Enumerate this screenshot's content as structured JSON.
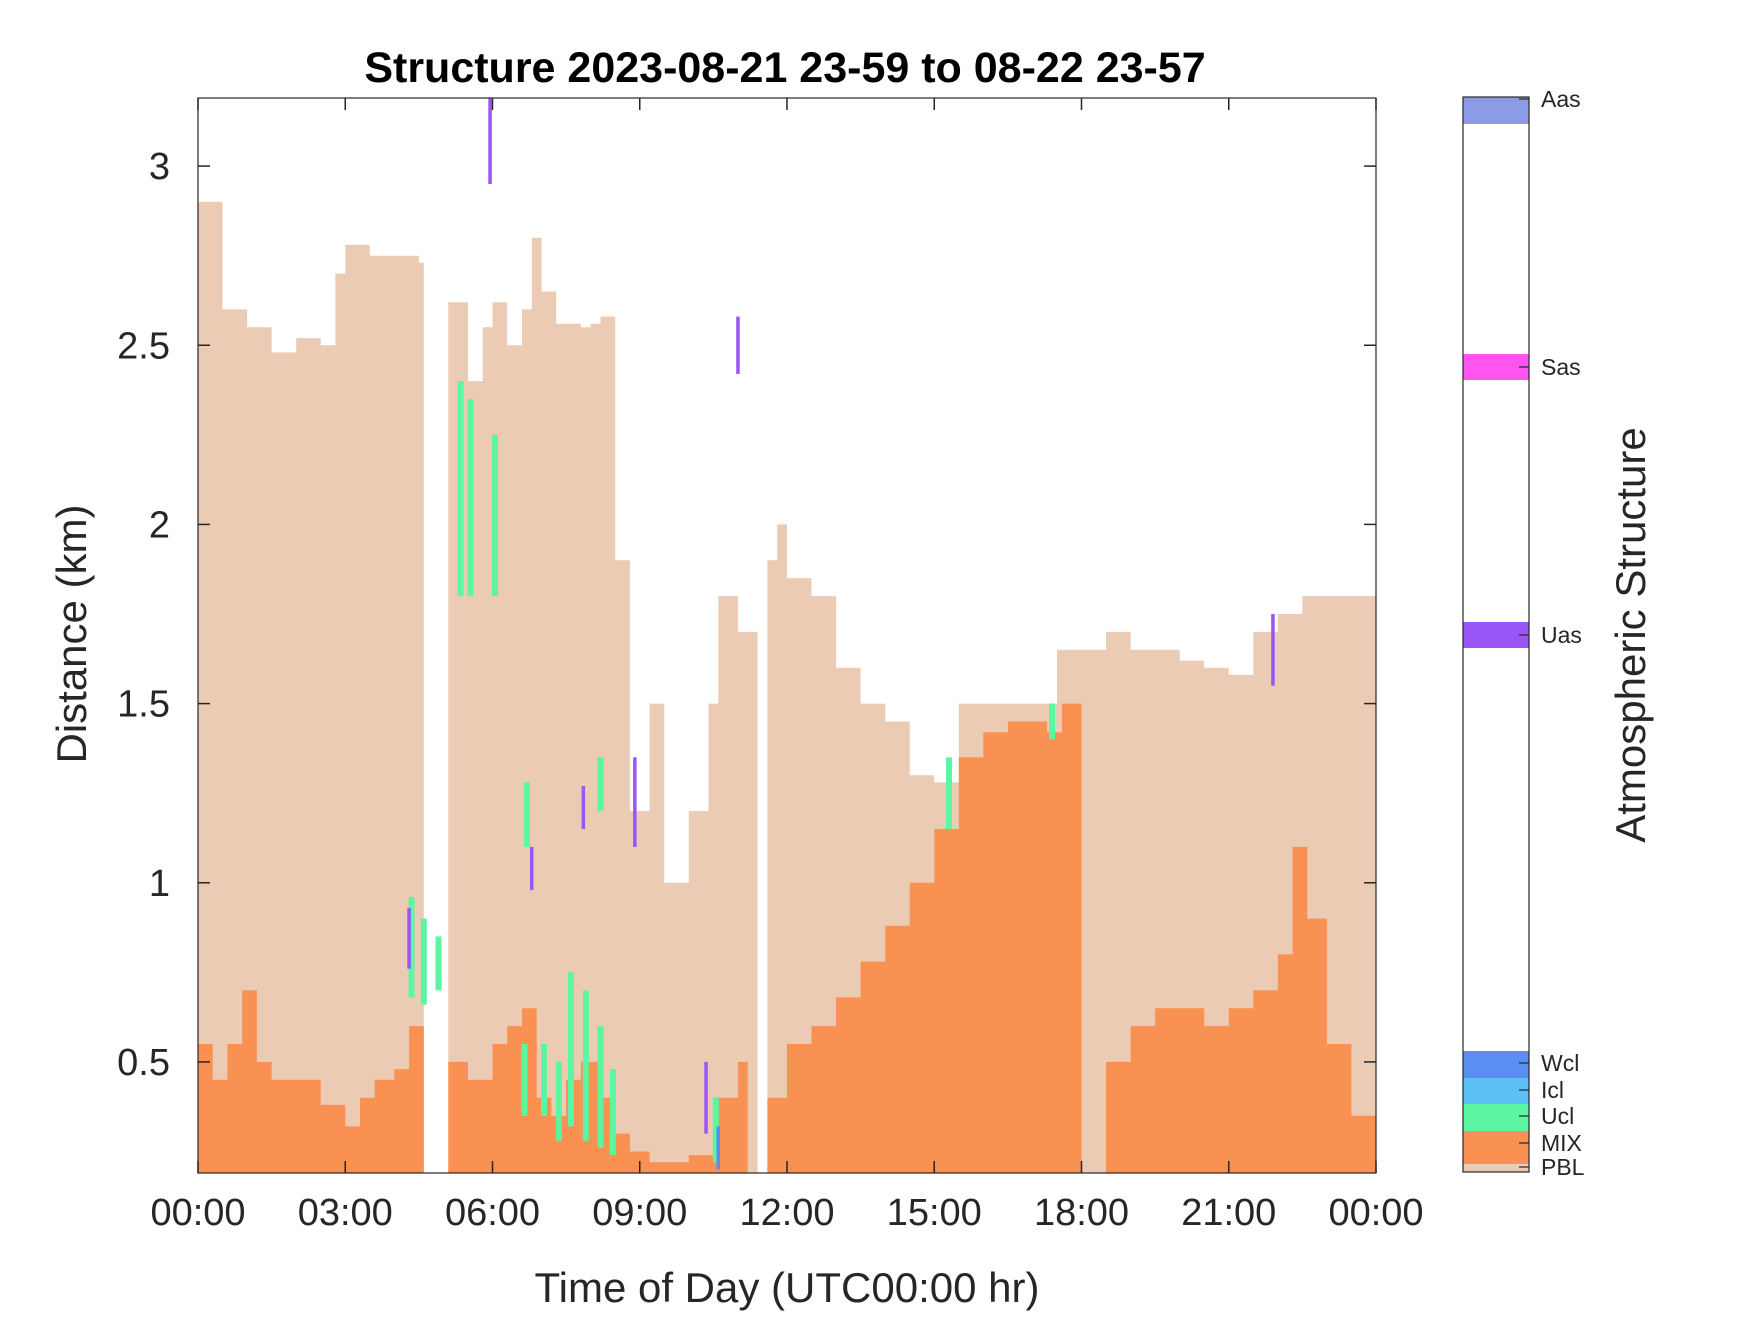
{
  "chart_data": {
    "type": "area",
    "title": "Structure 2023-08-21 23-59 to 08-22 23-57",
    "xlabel": "Time of Day (UTC00:00 hr)",
    "ylabel": "Distance (km)",
    "x_unit": "hours",
    "xlim": [
      0,
      24
    ],
    "ylim": [
      0.19,
      3.19
    ],
    "x_ticks": [
      0,
      3,
      6,
      9,
      12,
      15,
      18,
      21,
      24
    ],
    "x_tick_labels": [
      "00:00",
      "03:00",
      "06:00",
      "09:00",
      "12:00",
      "15:00",
      "18:00",
      "21:00",
      "00:00"
    ],
    "y_ticks": [
      0.5,
      1,
      1.5,
      2,
      2.5,
      3
    ],
    "y_tick_labels": [
      "0.5",
      "1",
      "1.5",
      "2",
      "2.5",
      "3"
    ],
    "colorbar": {
      "title": "Atmospheric Structure",
      "classes": [
        {
          "label": "Aas",
          "color": "#8c9be6"
        },
        {
          "label": "Sas",
          "color": "#ff55ee"
        },
        {
          "label": "Uas",
          "color": "#9955f5"
        },
        {
          "label": "Wcl",
          "color": "#5c8ef2"
        },
        {
          "label": "Icl",
          "color": "#5cc2f5"
        },
        {
          "label": "Ucl",
          "color": "#5cf5a2"
        },
        {
          "label": "MIX",
          "color": "#f99152"
        },
        {
          "label": "PBL",
          "color": "#eccbb5"
        }
      ]
    },
    "series": [
      {
        "name": "PBL",
        "color": "#eccbb5",
        "points": [
          [
            0,
            2.9
          ],
          [
            0.5,
            2.6
          ],
          [
            1,
            2.55
          ],
          [
            1.5,
            2.48
          ],
          [
            2,
            2.52
          ],
          [
            2.5,
            2.5
          ],
          [
            2.8,
            2.7
          ],
          [
            3,
            2.78
          ],
          [
            3.5,
            2.75
          ],
          [
            4,
            2.75
          ],
          [
            4.5,
            2.73
          ],
          [
            4.6,
            0.19
          ],
          [
            5.0,
            0.19
          ],
          [
            5.1,
            2.62
          ],
          [
            5.5,
            2.4
          ],
          [
            5.8,
            2.55
          ],
          [
            6,
            2.62
          ],
          [
            6.3,
            2.5
          ],
          [
            6.6,
            2.6
          ],
          [
            6.8,
            2.8
          ],
          [
            7,
            2.65
          ],
          [
            7.3,
            2.56
          ],
          [
            7.8,
            2.55
          ],
          [
            8.0,
            2.56
          ],
          [
            8.2,
            2.58
          ],
          [
            8.5,
            1.9
          ],
          [
            8.8,
            1.2
          ],
          [
            9.2,
            1.5
          ],
          [
            9.5,
            1.0
          ],
          [
            10,
            1.2
          ],
          [
            10.4,
            1.5
          ],
          [
            10.6,
            1.8
          ],
          [
            11,
            1.7
          ],
          [
            11.4,
            0.19
          ],
          [
            11.6,
            1.9
          ],
          [
            11.8,
            2.0
          ],
          [
            12,
            1.85
          ],
          [
            12.5,
            1.8
          ],
          [
            13,
            1.6
          ],
          [
            13.5,
            1.5
          ],
          [
            14,
            1.45
          ],
          [
            14.5,
            1.3
          ],
          [
            15,
            1.28
          ],
          [
            15.5,
            1.5
          ],
          [
            16,
            1.5
          ],
          [
            17,
            1.5
          ],
          [
            17.5,
            1.65
          ],
          [
            18,
            1.65
          ],
          [
            18.5,
            1.7
          ],
          [
            19,
            1.65
          ],
          [
            19.5,
            1.65
          ],
          [
            20,
            1.62
          ],
          [
            20.5,
            1.6
          ],
          [
            21,
            1.58
          ],
          [
            21.5,
            1.7
          ],
          [
            22,
            1.75
          ],
          [
            22.5,
            1.8
          ],
          [
            23,
            1.8
          ],
          [
            23.5,
            1.8
          ],
          [
            24,
            1.82
          ]
        ]
      },
      {
        "name": "MIX",
        "color": "#f99152",
        "points": [
          [
            0,
            0.55
          ],
          [
            0.3,
            0.45
          ],
          [
            0.6,
            0.55
          ],
          [
            0.9,
            0.7
          ],
          [
            1.2,
            0.5
          ],
          [
            1.5,
            0.45
          ],
          [
            2,
            0.45
          ],
          [
            2.5,
            0.38
          ],
          [
            3,
            0.32
          ],
          [
            3.3,
            0.4
          ],
          [
            3.6,
            0.45
          ],
          [
            4,
            0.48
          ],
          [
            4.3,
            0.6
          ],
          [
            4.6,
            0.19
          ],
          [
            5.0,
            0.19
          ],
          [
            5.1,
            0.5
          ],
          [
            5.5,
            0.45
          ],
          [
            6,
            0.55
          ],
          [
            6.3,
            0.6
          ],
          [
            6.6,
            0.65
          ],
          [
            6.9,
            0.4
          ],
          [
            7.2,
            0.35
          ],
          [
            7.5,
            0.45
          ],
          [
            7.8,
            0.5
          ],
          [
            8.2,
            0.4
          ],
          [
            8.5,
            0.3
          ],
          [
            8.8,
            0.25
          ],
          [
            9.2,
            0.22
          ],
          [
            9.6,
            0.22
          ],
          [
            10,
            0.24
          ],
          [
            10.5,
            0.4
          ],
          [
            11,
            0.5
          ],
          [
            11.2,
            0.19
          ],
          [
            11.4,
            0.19
          ],
          [
            11.6,
            0.4
          ],
          [
            12,
            0.55
          ],
          [
            12.5,
            0.6
          ],
          [
            13,
            0.68
          ],
          [
            13.5,
            0.78
          ],
          [
            14,
            0.88
          ],
          [
            14.5,
            1.0
          ],
          [
            15,
            1.15
          ],
          [
            15.5,
            1.35
          ],
          [
            16,
            1.42
          ],
          [
            16.5,
            1.45
          ],
          [
            17,
            1.45
          ],
          [
            17.3,
            1.42
          ],
          [
            17.6,
            1.5
          ],
          [
            17.9,
            1.5
          ],
          [
            18.0,
            0.19
          ],
          [
            18.5,
            0.5
          ],
          [
            19,
            0.6
          ],
          [
            19.5,
            0.65
          ],
          [
            20,
            0.65
          ],
          [
            20.5,
            0.6
          ],
          [
            21,
            0.65
          ],
          [
            21.5,
            0.7
          ],
          [
            22,
            0.8
          ],
          [
            22.3,
            1.1
          ],
          [
            22.6,
            0.9
          ],
          [
            23,
            0.55
          ],
          [
            23.5,
            0.35
          ],
          [
            24,
            0.3
          ]
        ]
      },
      {
        "name": "Ucl",
        "color": "#5cf5a2",
        "segments": [
          [
            5.35,
            1.8,
            2.4
          ],
          [
            5.55,
            1.8,
            2.35
          ],
          [
            6.05,
            1.8,
            2.25
          ],
          [
            4.35,
            0.68,
            0.96
          ],
          [
            4.6,
            0.66,
            0.9
          ],
          [
            4.9,
            0.7,
            0.85
          ],
          [
            6.65,
            0.35,
            0.55
          ],
          [
            7.05,
            0.35,
            0.55
          ],
          [
            7.35,
            0.28,
            0.5
          ],
          [
            7.6,
            0.32,
            0.75
          ],
          [
            7.9,
            0.28,
            0.7
          ],
          [
            8.2,
            0.26,
            0.6
          ],
          [
            8.45,
            0.24,
            0.48
          ],
          [
            6.7,
            1.1,
            1.28
          ],
          [
            8.2,
            1.2,
            1.35
          ],
          [
            10.55,
            0.22,
            0.4
          ],
          [
            15.3,
            1.15,
            1.35
          ],
          [
            17.4,
            1.4,
            1.5
          ]
        ]
      },
      {
        "name": "Uas",
        "color": "#9955f5",
        "segments": [
          [
            5.95,
            2.95,
            3.2
          ],
          [
            4.3,
            0.76,
            0.93
          ],
          [
            6.8,
            0.98,
            1.1
          ],
          [
            7.85,
            1.15,
            1.27
          ],
          [
            8.9,
            1.1,
            1.35
          ],
          [
            10.35,
            0.3,
            0.5
          ],
          [
            11.0,
            2.42,
            2.58
          ],
          [
            21.9,
            1.55,
            1.75
          ]
        ]
      },
      {
        "name": "Wcl",
        "color": "#5c8ef2",
        "segments": [
          [
            10.6,
            0.2,
            0.32
          ]
        ]
      }
    ]
  }
}
